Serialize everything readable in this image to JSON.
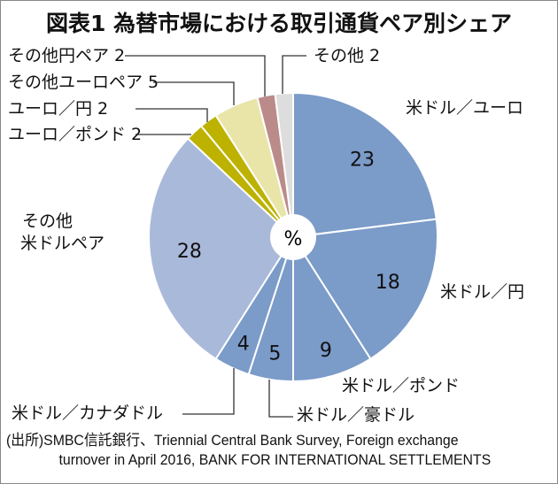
{
  "chart_data": {
    "type": "pie",
    "title": "図表1 為替市場における取引通貨ペア別シェア",
    "center_label": "%",
    "start": "top",
    "direction": "clockwise",
    "slices": [
      {
        "label": "米ドル／ユーロ",
        "value": 23,
        "color": "#7b9bc9"
      },
      {
        "label": "米ドル／円",
        "value": 18,
        "color": "#7b9bc9"
      },
      {
        "label": "米ドル／ポンド",
        "value": 9,
        "color": "#7b9bc9"
      },
      {
        "label": "米ドル／豪ドル",
        "value": 5,
        "color": "#7b9bc9"
      },
      {
        "label": "米ドル／カナダドル",
        "value": 4,
        "color": "#7b9bc9"
      },
      {
        "label": "その他\n米ドルペア",
        "label_lines": [
          "その他",
          "米ドルペア"
        ],
        "value": 28,
        "color": "#a9b9da"
      },
      {
        "label": "ユーロ／ポンド",
        "value": 2,
        "color": "#bdb200"
      },
      {
        "label": "ユーロ／円",
        "value": 2,
        "color": "#bdb200"
      },
      {
        "label": "その他ユーロペア",
        "value": 5,
        "color": "#e9e5a9"
      },
      {
        "label": "その他円ペア",
        "value": 2,
        "color": "#bb8b8a"
      },
      {
        "label": "その他",
        "value": 2,
        "color": "#dddddd"
      }
    ],
    "outer_labels": {
      "usd_eur": "米ドル／ユーロ",
      "usd_jpy": "米ドル／円",
      "usd_gbp": "米ドル／ポンド",
      "usd_aud": "米ドル／豪ドル",
      "usd_cad": "米ドル／カナダドル",
      "other_usd_1": "その他",
      "other_usd_2": "米ドルペア",
      "eur_gbp": "ユーロ／ポンド 2",
      "eur_jpy": "ユーロ／円 2",
      "other_eur": "その他ユーロペア 5",
      "other_jpy": "その他円ペア 2",
      "other": "その他 2"
    }
  },
  "source": {
    "line1": "(出所)SMBC信託銀行、Triennial Central Bank Survey, Foreign exchange",
    "line2": "turnover in April 2016, BANK FOR INTERNATIONAL SETTLEMENTS"
  }
}
